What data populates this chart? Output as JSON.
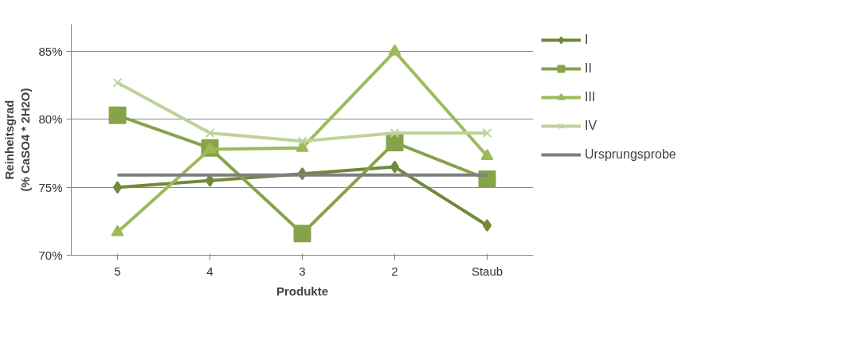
{
  "chart_data": {
    "type": "line",
    "xlabel": "Produkte",
    "ylabel": "Reinheitsgrad\n(% CaSO4 * 2H2O)",
    "categories": [
      "5",
      "4",
      "3",
      "2",
      "Staub"
    ],
    "series": [
      {
        "name": "I",
        "color": "#71893a",
        "marker": "diamond",
        "values": [
          75.0,
          75.5,
          76.0,
          76.5,
          72.2
        ]
      },
      {
        "name": "II",
        "color": "#86a34a",
        "marker": "square",
        "values": [
          80.3,
          77.9,
          71.6,
          78.3,
          75.6
        ]
      },
      {
        "name": "III",
        "color": "#9bbb59",
        "marker": "triangle",
        "values": [
          71.7,
          77.8,
          77.9,
          85.0,
          77.3
        ]
      },
      {
        "name": "IV",
        "color": "#bdd39a",
        "marker": "cross",
        "values": [
          82.7,
          79.0,
          78.4,
          79.0,
          79.0
        ]
      },
      {
        "name": "Ursprungsprobe",
        "color": "#7f7f7f",
        "marker": "none",
        "values": [
          75.9,
          75.9,
          75.9,
          75.9,
          75.9
        ]
      }
    ],
    "ylim": [
      70,
      87
    ],
    "yticks": [
      {
        "value": 70,
        "label": "70%"
      },
      {
        "value": 75,
        "label": "75%"
      },
      {
        "value": 80,
        "label": "80%"
      },
      {
        "value": 85,
        "label": "85%"
      }
    ],
    "grid": "y",
    "legend": "right"
  }
}
